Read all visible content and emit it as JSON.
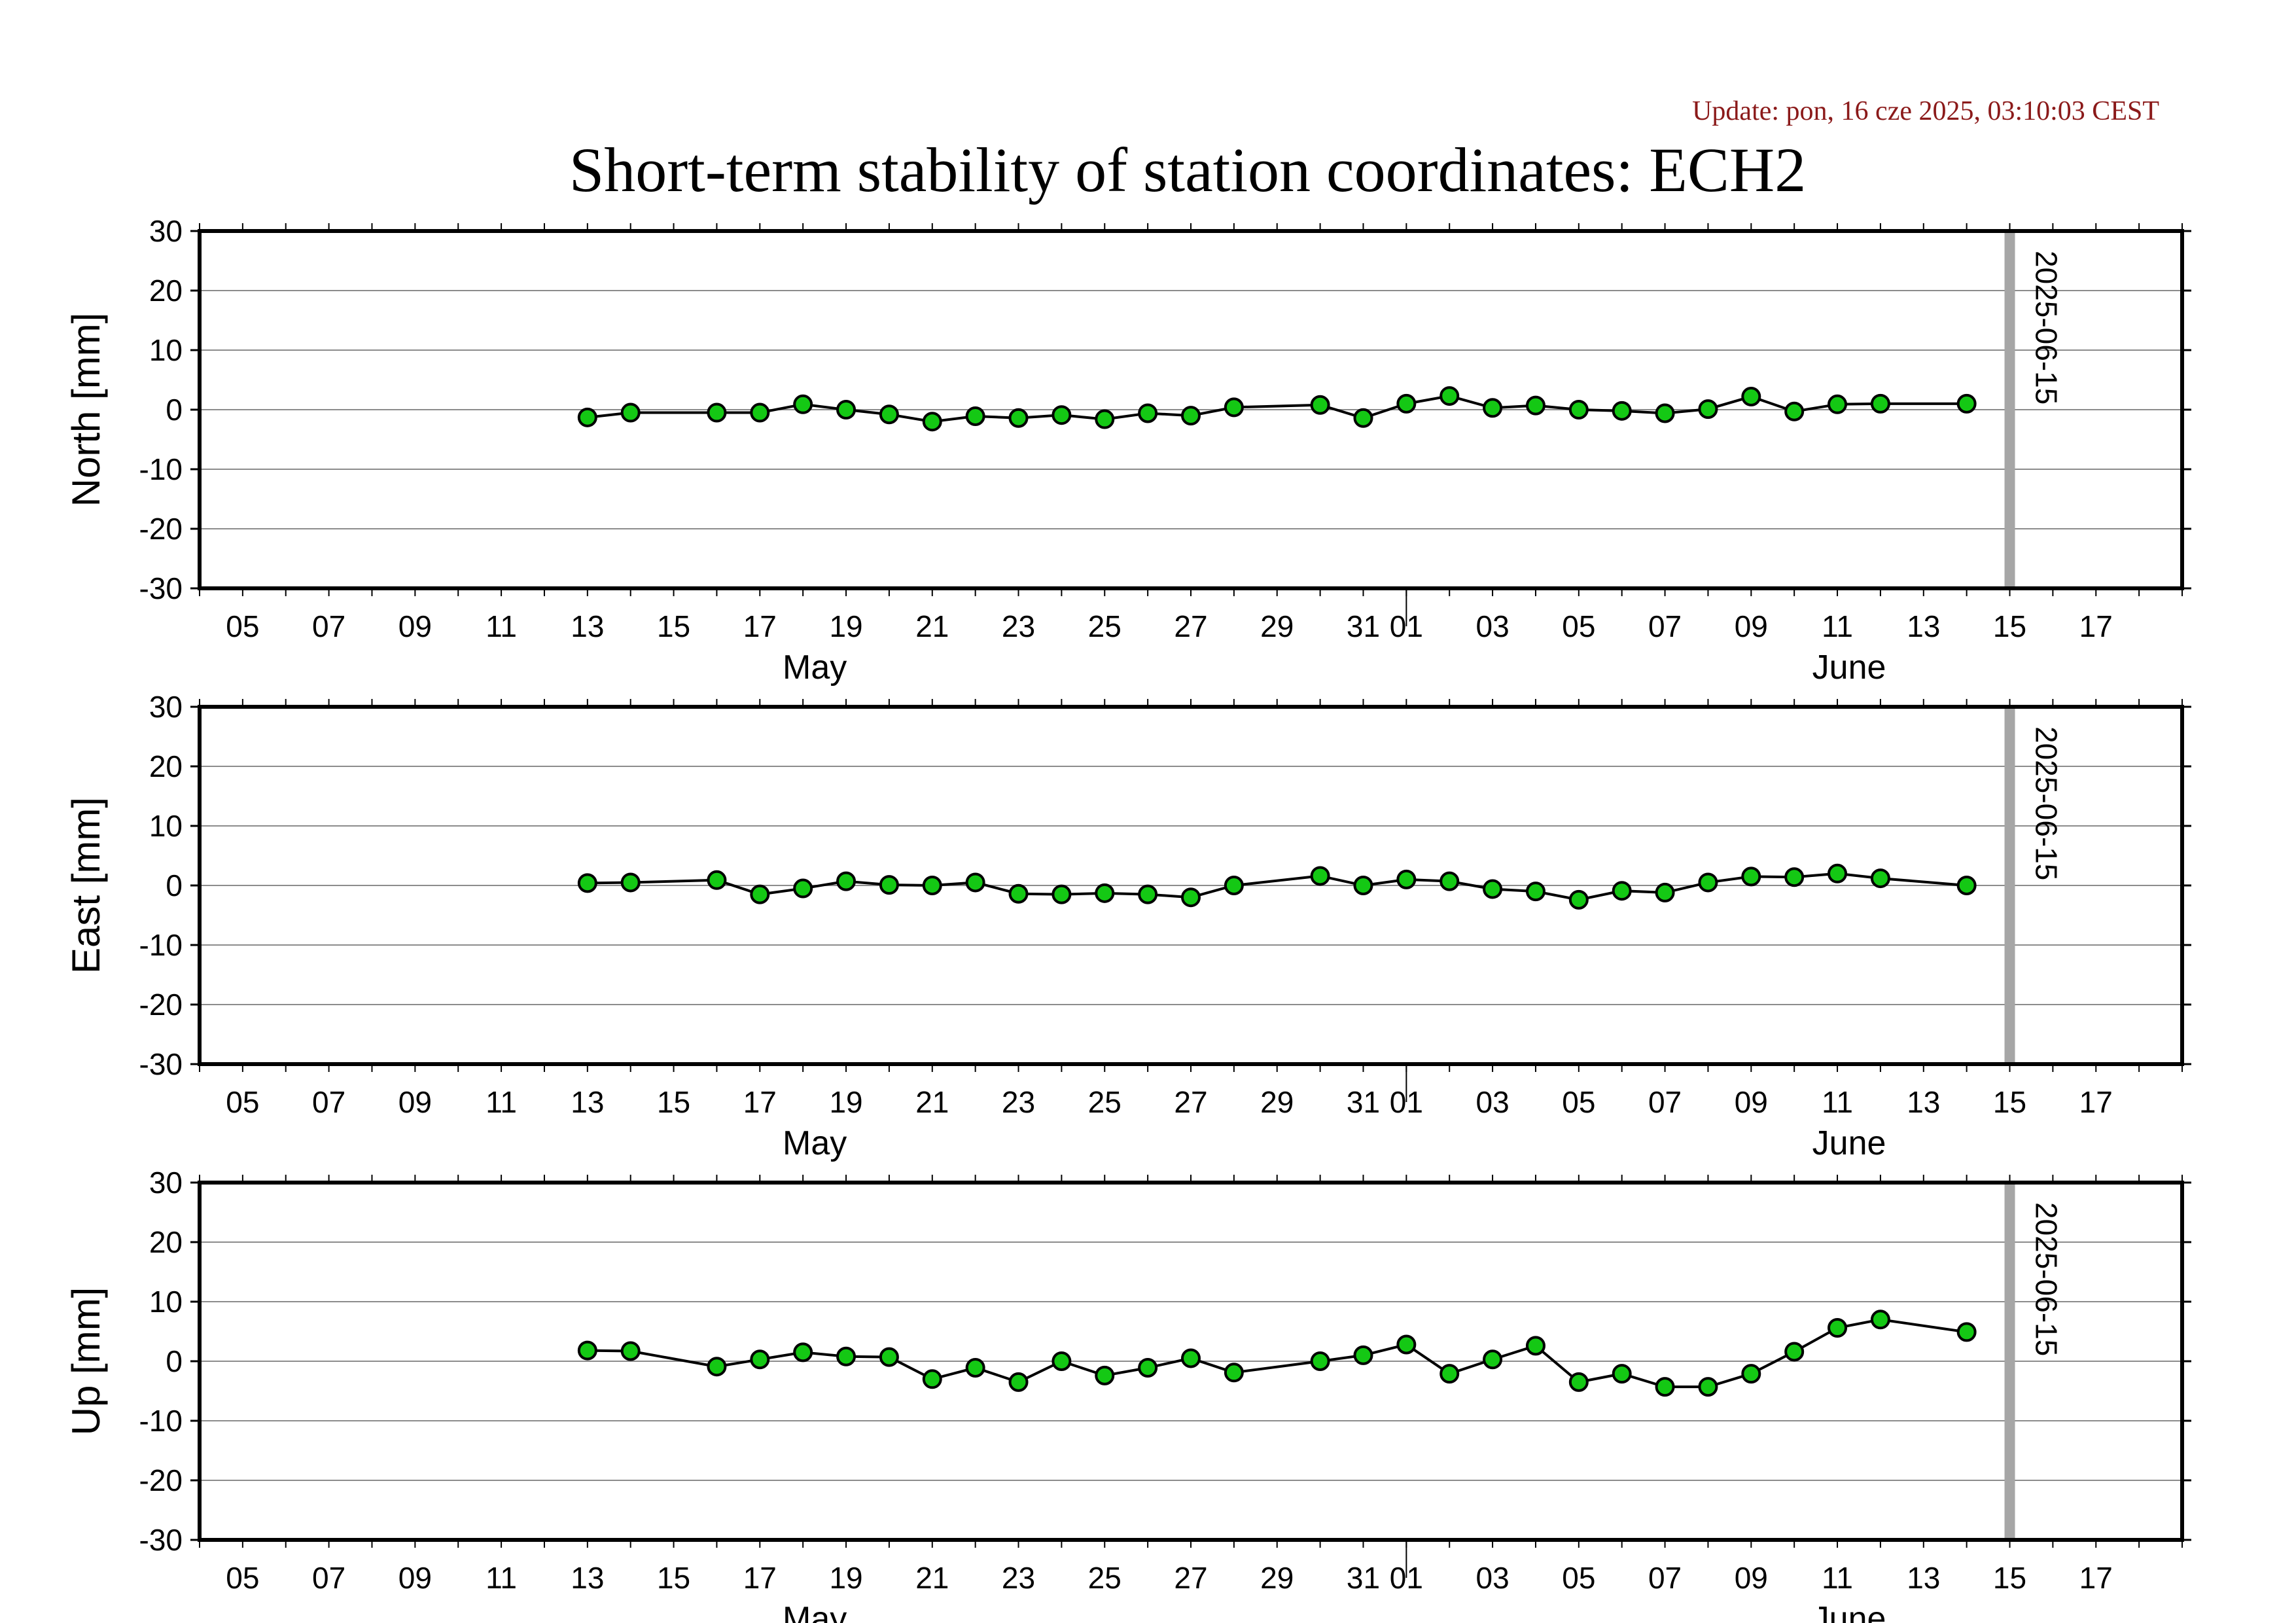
{
  "update_text": "Update: pon, 16 cze 2025, 03:10:03 CEST",
  "title": "Short-term stability of station coordinates: ECH2",
  "x_tick_labels": [
    "05",
    "07",
    "09",
    "11",
    "13",
    "15",
    "17",
    "19",
    "21",
    "23",
    "25",
    "27",
    "29",
    "31",
    "01",
    "03",
    "05",
    "07",
    "09",
    "11",
    "13",
    "15",
    "17"
  ],
  "month_labels": [
    "May",
    "June"
  ],
  "marker_label": "2025-06-15",
  "colors": {
    "point_fill": "#14c814",
    "point_stroke": "#000000",
    "line": "#000000",
    "grid": "#8c8c8c",
    "marker": "#a6a6a6",
    "update": "#8b1a1a"
  },
  "chart_data": [
    {
      "type": "line",
      "ylabel": "North [mm]",
      "ylim": [
        -30,
        30
      ],
      "xlim": [
        "2025-05-04",
        "2025-06-19"
      ],
      "y_ticks": [
        30,
        20,
        10,
        0,
        -10,
        -20,
        -30
      ],
      "grid": true,
      "marker": "2025-06-15",
      "x": [
        "2025-05-13",
        "2025-05-14",
        "2025-05-16",
        "2025-05-17",
        "2025-05-18",
        "2025-05-19",
        "2025-05-20",
        "2025-05-21",
        "2025-05-22",
        "2025-05-23",
        "2025-05-24",
        "2025-05-25",
        "2025-05-26",
        "2025-05-27",
        "2025-05-28",
        "2025-05-30",
        "2025-05-31",
        "2025-06-01",
        "2025-06-02",
        "2025-06-03",
        "2025-06-04",
        "2025-06-05",
        "2025-06-06",
        "2025-06-07",
        "2025-06-08",
        "2025-06-09",
        "2025-06-10",
        "2025-06-11",
        "2025-06-12",
        "2025-06-14"
      ],
      "values": [
        -1.3,
        -0.5,
        -0.5,
        -0.5,
        0.9,
        0.0,
        -0.8,
        -2.0,
        -1.1,
        -1.4,
        -0.9,
        -1.6,
        -0.6,
        -1.0,
        0.4,
        0.8,
        -1.4,
        1.0,
        2.3,
        0.3,
        0.7,
        0.0,
        -0.2,
        -0.6,
        0.1,
        2.2,
        -0.3,
        0.9,
        1.0,
        1.0
      ]
    },
    {
      "type": "line",
      "ylabel": "East [mm]",
      "ylim": [
        -30,
        30
      ],
      "xlim": [
        "2025-05-04",
        "2025-06-19"
      ],
      "y_ticks": [
        30,
        20,
        10,
        0,
        -10,
        -20,
        -30
      ],
      "grid": true,
      "marker": "2025-06-15",
      "x": [
        "2025-05-13",
        "2025-05-14",
        "2025-05-16",
        "2025-05-17",
        "2025-05-18",
        "2025-05-19",
        "2025-05-20",
        "2025-05-21",
        "2025-05-22",
        "2025-05-23",
        "2025-05-24",
        "2025-05-25",
        "2025-05-26",
        "2025-05-27",
        "2025-05-28",
        "2025-05-30",
        "2025-05-31",
        "2025-06-01",
        "2025-06-02",
        "2025-06-03",
        "2025-06-04",
        "2025-06-05",
        "2025-06-06",
        "2025-06-07",
        "2025-06-08",
        "2025-06-09",
        "2025-06-10",
        "2025-06-11",
        "2025-06-12",
        "2025-06-14"
      ],
      "values": [
        0.4,
        0.5,
        0.9,
        -1.5,
        -0.5,
        0.7,
        0.1,
        0.0,
        0.5,
        -1.4,
        -1.5,
        -1.3,
        -1.5,
        -2.0,
        0.0,
        1.6,
        0.0,
        1.0,
        0.7,
        -0.6,
        -1.0,
        -2.4,
        -0.9,
        -1.2,
        0.5,
        1.5,
        1.4,
        2.0,
        1.2,
        0.0
      ]
    },
    {
      "type": "line",
      "ylabel": "Up [mm]",
      "ylim": [
        -30,
        30
      ],
      "xlim": [
        "2025-05-04",
        "2025-06-19"
      ],
      "y_ticks": [
        30,
        20,
        10,
        0,
        -10,
        -20,
        -30
      ],
      "grid": true,
      "marker": "2025-06-15",
      "x": [
        "2025-05-13",
        "2025-05-14",
        "2025-05-16",
        "2025-05-17",
        "2025-05-18",
        "2025-05-19",
        "2025-05-20",
        "2025-05-21",
        "2025-05-22",
        "2025-05-23",
        "2025-05-24",
        "2025-05-25",
        "2025-05-26",
        "2025-05-27",
        "2025-05-28",
        "2025-05-30",
        "2025-05-31",
        "2025-06-01",
        "2025-06-02",
        "2025-06-03",
        "2025-06-04",
        "2025-06-05",
        "2025-06-06",
        "2025-06-07",
        "2025-06-08",
        "2025-06-09",
        "2025-06-10",
        "2025-06-11",
        "2025-06-12",
        "2025-06-14"
      ],
      "values": [
        1.8,
        1.7,
        -0.9,
        0.3,
        1.5,
        0.8,
        0.7,
        -3.0,
        -1.1,
        -3.5,
        0.0,
        -2.4,
        -1.1,
        0.5,
        -1.9,
        0.0,
        1.0,
        2.8,
        -2.1,
        0.3,
        2.6,
        -3.5,
        -2.1,
        -4.3,
        -4.3,
        -2.1,
        1.6,
        5.6,
        7.0,
        4.9
      ]
    }
  ]
}
